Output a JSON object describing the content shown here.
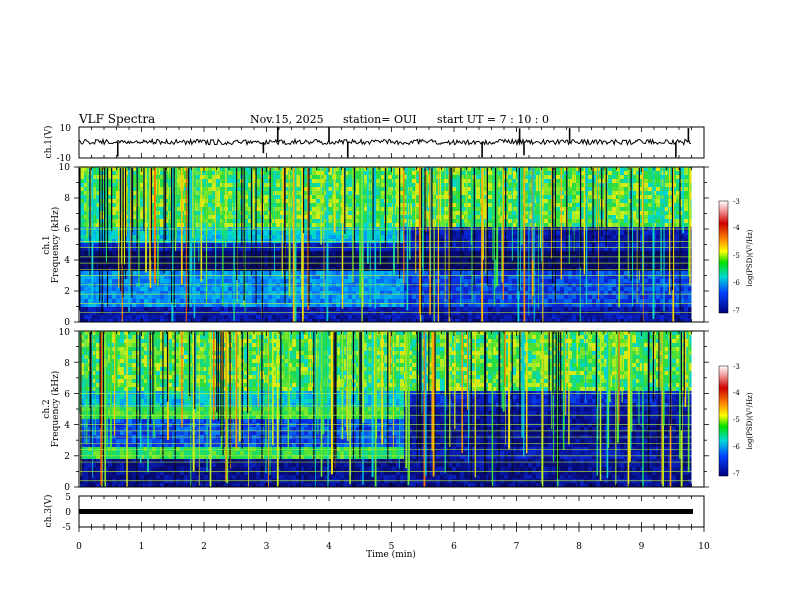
{
  "header": {
    "title": "VLF Spectra",
    "date": "Nov.15, 2025",
    "station": "station= OUI",
    "start": "start  UT =   7 : 10 : 0"
  },
  "colors": {
    "bg_dark": "#06092a",
    "noise_band": "#0e22a8",
    "line_color": "#b6f53c",
    "trace": "#000000"
  },
  "colorbar": {
    "label": "log(PSD)(V²/Hz)",
    "ticks": [
      "-3",
      "-4",
      "-5",
      "-6",
      "-7"
    ],
    "stops": [
      "#c00000",
      "#ff7f00",
      "#ffff00",
      "#00e000",
      "#00d8d8",
      "#0040ff",
      "#000080"
    ]
  },
  "chart_data": [
    {
      "type": "line",
      "panel": "ch1-waveform",
      "ylabel": "ch.1(V)",
      "ylim": [
        -10,
        10
      ],
      "ytick_labels": [
        "10",
        "-10"
      ],
      "xlim": [
        0,
        10
      ],
      "baseline": 0,
      "spikes_min": [
        0.62,
        2.95,
        3.18,
        4.0,
        4.3,
        6.45,
        7.05,
        7.12,
        7.85,
        9.55,
        9.75
      ],
      "spike_sign": [
        -1,
        -1,
        1,
        1,
        -1,
        -1,
        1,
        -1,
        1,
        -1,
        1
      ]
    },
    {
      "type": "heatmap",
      "panel": "ch1-spectrogram",
      "ylabel": "Frequency (kHz)",
      "channel_label": "ch.1",
      "ylim": [
        0,
        10
      ],
      "ytick_labels": [
        "0",
        "2",
        "4",
        "6",
        "8",
        "10"
      ],
      "xlim": [
        0,
        9.8
      ],
      "low_band_khz": [
        1.0,
        3.2
      ],
      "hum_lines_khz": [
        0.6,
        1.2,
        1.8,
        2.4,
        3.0,
        3.4,
        3.8,
        4.2,
        4.8,
        5.2,
        6.0
      ],
      "upper_shift_min": 5.2,
      "log_psd_range": [
        -7,
        -3
      ]
    },
    {
      "type": "heatmap",
      "panel": "ch2-spectrogram",
      "ylabel": "Frequency (kHz)",
      "channel_label": "ch.2",
      "ylim": [
        0,
        10
      ],
      "ytick_labels": [
        "0",
        "2",
        "4",
        "6",
        "8",
        "10"
      ],
      "xlim": [
        0,
        9.8
      ],
      "band_until_min": 5.2,
      "band_khz": [
        [
          2.0,
          2.8
        ],
        [
          4.6,
          5.2
        ]
      ],
      "hum_lines_khz": [
        0.4,
        1.0,
        1.6,
        2.0,
        2.4,
        2.8,
        3.2,
        3.6,
        4.0,
        4.6,
        5.2,
        6.0
      ],
      "log_psd_range": [
        -7,
        -3
      ]
    },
    {
      "type": "line",
      "panel": "ch3-waveform",
      "ylabel": "ch.3(V)",
      "ylim": [
        -5,
        5
      ],
      "ytick_labels": [
        "5",
        "0",
        "-5"
      ],
      "xlim": [
        0,
        9.8
      ],
      "constant_value": 0
    }
  ],
  "xaxis": {
    "label": "Time (min)",
    "ticks": [
      "0",
      "1",
      "2",
      "3",
      "4",
      "5",
      "6",
      "7",
      "8",
      "9",
      "10"
    ],
    "xlim": [
      0,
      10
    ]
  }
}
